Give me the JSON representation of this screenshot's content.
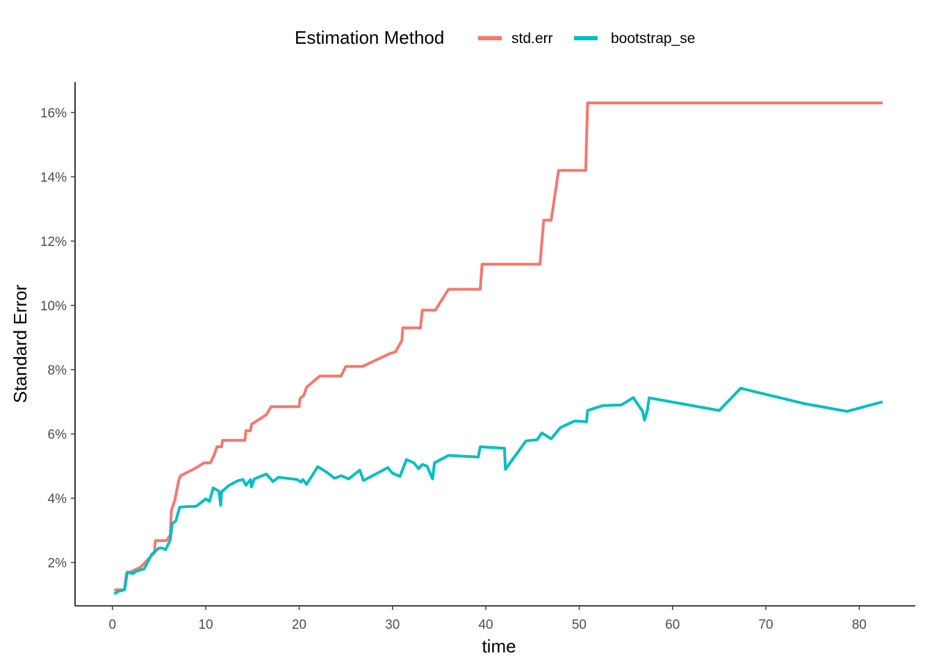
{
  "chart_data": {
    "type": "line",
    "title": "",
    "xlabel": "time",
    "ylabel": "Standard Error",
    "xlim": [
      -4,
      86
    ],
    "ylim": [
      0.0065,
      0.1695
    ],
    "x_ticks": [
      0,
      10,
      20,
      30,
      40,
      50,
      60,
      70,
      80
    ],
    "x_tick_labels": [
      "0",
      "10",
      "20",
      "30",
      "40",
      "50",
      "60",
      "70",
      "80"
    ],
    "y_ticks": [
      0.02,
      0.04,
      0.06,
      0.08,
      0.1,
      0.12,
      0.14,
      0.16
    ],
    "y_tick_labels": [
      "2%",
      "4%",
      "6%",
      "8%",
      "10%",
      "12%",
      "14%",
      "16%"
    ],
    "grid": false,
    "legend": {
      "title": "Estimation Method",
      "position": "top"
    },
    "series": [
      {
        "name": "std.err",
        "color": "#F8766D",
        "points": [
          [
            0.2,
            0.0115
          ],
          [
            1.3,
            0.0115
          ],
          [
            1.5,
            0.0165
          ],
          [
            3.0,
            0.0185
          ],
          [
            4.5,
            0.023
          ],
          [
            4.6,
            0.0268
          ],
          [
            5.8,
            0.0268
          ],
          [
            6.2,
            0.0285
          ],
          [
            6.3,
            0.036
          ],
          [
            6.7,
            0.0395
          ],
          [
            7.1,
            0.0455
          ],
          [
            7.3,
            0.047
          ],
          [
            9.0,
            0.0495
          ],
          [
            9.8,
            0.051
          ],
          [
            10.5,
            0.051
          ],
          [
            10.9,
            0.0535
          ],
          [
            11.2,
            0.056
          ],
          [
            11.7,
            0.056
          ],
          [
            11.8,
            0.058
          ],
          [
            14.2,
            0.058
          ],
          [
            14.3,
            0.061
          ],
          [
            14.8,
            0.061
          ],
          [
            14.9,
            0.063
          ],
          [
            16.5,
            0.066
          ],
          [
            17.0,
            0.0685
          ],
          [
            20.0,
            0.0685
          ],
          [
            20.1,
            0.071
          ],
          [
            20.5,
            0.072
          ],
          [
            20.8,
            0.0745
          ],
          [
            22.2,
            0.078
          ],
          [
            24.5,
            0.078
          ],
          [
            25.0,
            0.081
          ],
          [
            26.8,
            0.081
          ],
          [
            29.7,
            0.085
          ],
          [
            30.3,
            0.0855
          ],
          [
            31.0,
            0.089
          ],
          [
            31.1,
            0.093
          ],
          [
            33.0,
            0.093
          ],
          [
            33.2,
            0.0985
          ],
          [
            34.6,
            0.0985
          ],
          [
            36.0,
            0.105
          ],
          [
            39.4,
            0.105
          ],
          [
            39.6,
            0.1128
          ],
          [
            45.8,
            0.1128
          ],
          [
            46.2,
            0.1265
          ],
          [
            47.0,
            0.1265
          ],
          [
            47.8,
            0.142
          ],
          [
            50.7,
            0.142
          ],
          [
            50.9,
            0.163
          ],
          [
            82.5,
            0.163
          ]
        ]
      },
      {
        "name": "bootstrap_se",
        "color": "#00BFC4",
        "points": [
          [
            0.2,
            0.0102
          ],
          [
            0.6,
            0.011
          ],
          [
            1.3,
            0.0115
          ],
          [
            1.6,
            0.017
          ],
          [
            2.2,
            0.0165
          ],
          [
            2.5,
            0.0172
          ],
          [
            3.4,
            0.018
          ],
          [
            4.2,
            0.0225
          ],
          [
            5.0,
            0.0245
          ],
          [
            5.3,
            0.0245
          ],
          [
            5.7,
            0.024
          ],
          [
            6.2,
            0.027
          ],
          [
            6.4,
            0.032
          ],
          [
            6.8,
            0.033
          ],
          [
            7.2,
            0.0372
          ],
          [
            8.0,
            0.0374
          ],
          [
            9.0,
            0.0375
          ],
          [
            10.0,
            0.0398
          ],
          [
            10.4,
            0.039
          ],
          [
            10.8,
            0.0432
          ],
          [
            11.4,
            0.0422
          ],
          [
            11.6,
            0.0378
          ],
          [
            11.7,
            0.042
          ],
          [
            12.5,
            0.044
          ],
          [
            13.5,
            0.0455
          ],
          [
            14.0,
            0.0458
          ],
          [
            14.3,
            0.044
          ],
          [
            14.8,
            0.0458
          ],
          [
            14.9,
            0.0435
          ],
          [
            15.2,
            0.046
          ],
          [
            16.5,
            0.0475
          ],
          [
            17.2,
            0.0452
          ],
          [
            17.8,
            0.0465
          ],
          [
            19.8,
            0.0458
          ],
          [
            20.2,
            0.045
          ],
          [
            20.4,
            0.0458
          ],
          [
            20.8,
            0.0443
          ],
          [
            22.0,
            0.0498
          ],
          [
            23.0,
            0.048
          ],
          [
            23.8,
            0.0462
          ],
          [
            24.5,
            0.047
          ],
          [
            25.3,
            0.046
          ],
          [
            26.5,
            0.0487
          ],
          [
            26.9,
            0.0455
          ],
          [
            29.5,
            0.0495
          ],
          [
            30.0,
            0.0478
          ],
          [
            30.8,
            0.0468
          ],
          [
            31.5,
            0.052
          ],
          [
            32.3,
            0.051
          ],
          [
            32.8,
            0.0492
          ],
          [
            33.2,
            0.0505
          ],
          [
            33.7,
            0.05
          ],
          [
            34.3,
            0.046
          ],
          [
            34.5,
            0.051
          ],
          [
            36.0,
            0.0533
          ],
          [
            39.2,
            0.0528
          ],
          [
            39.4,
            0.056
          ],
          [
            42.0,
            0.0555
          ],
          [
            42.1,
            0.049
          ],
          [
            44.3,
            0.0578
          ],
          [
            45.5,
            0.0582
          ],
          [
            46.0,
            0.0603
          ],
          [
            47.0,
            0.0585
          ],
          [
            48.0,
            0.062
          ],
          [
            49.5,
            0.064
          ],
          [
            50.8,
            0.0638
          ],
          [
            50.9,
            0.0673
          ],
          [
            52.5,
            0.0688
          ],
          [
            54.5,
            0.069
          ],
          [
            55.8,
            0.0713
          ],
          [
            56.8,
            0.067
          ],
          [
            57.0,
            0.0643
          ],
          [
            57.3,
            0.0672
          ],
          [
            57.5,
            0.0712
          ],
          [
            65.0,
            0.0673
          ],
          [
            67.3,
            0.0742
          ],
          [
            74.0,
            0.0695
          ],
          [
            78.7,
            0.067
          ],
          [
            82.5,
            0.07
          ]
        ]
      }
    ]
  }
}
